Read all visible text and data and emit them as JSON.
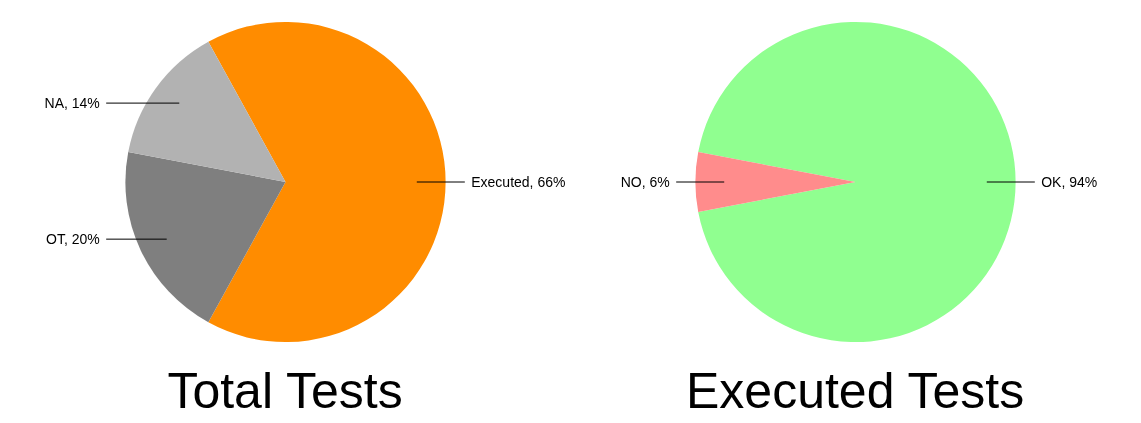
{
  "chart_data": [
    {
      "type": "pie",
      "title": "Total Tests",
      "categories": [
        "Executed",
        "OT",
        "NA"
      ],
      "values": [
        66,
        20,
        14
      ],
      "colors": [
        "#ff8c00",
        "#7f7f7f",
        "#b2b2b2"
      ],
      "value_labels": [
        "66%",
        "20%",
        "14%"
      ]
    },
    {
      "type": "pie",
      "title": "Executed Tests",
      "categories": [
        "OK",
        "NO"
      ],
      "values": [
        94,
        6
      ],
      "colors": [
        "#90ff90",
        "#ff8c8c"
      ],
      "value_labels": [
        "94%",
        "6%"
      ]
    }
  ]
}
